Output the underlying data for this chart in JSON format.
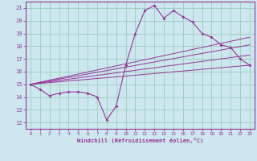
{
  "xlabel": "Windchill (Refroidissement éolien,°C)",
  "bg_color": "#cce8ee",
  "grid_color": "#99ccbb",
  "line_color": "#993399",
  "xlim": [
    -0.5,
    23.5
  ],
  "ylim": [
    11.5,
    21.5
  ],
  "yticks": [
    12,
    13,
    14,
    15,
    16,
    17,
    18,
    19,
    20,
    21
  ],
  "xticks": [
    0,
    1,
    2,
    3,
    4,
    5,
    6,
    7,
    8,
    9,
    10,
    11,
    12,
    13,
    14,
    15,
    16,
    17,
    18,
    19,
    20,
    21,
    22,
    23
  ],
  "line1_x": [
    0,
    1,
    2,
    3,
    4,
    5,
    6,
    7,
    8,
    9,
    10,
    11,
    12,
    13,
    14,
    15,
    16,
    17,
    18,
    19,
    20,
    21,
    22,
    23
  ],
  "line1_y": [
    15.0,
    14.6,
    14.1,
    14.3,
    14.4,
    14.4,
    14.3,
    14.0,
    12.2,
    13.3,
    16.5,
    19.0,
    20.8,
    21.2,
    20.2,
    20.8,
    20.3,
    19.9,
    19.0,
    18.7,
    18.1,
    17.9,
    17.0,
    16.5
  ],
  "line2_x": [
    0,
    23
  ],
  "line2_y": [
    15.0,
    16.5
  ],
  "line3_x": [
    0,
    23
  ],
  "line3_y": [
    15.0,
    17.3
  ],
  "line4_x": [
    0,
    23
  ],
  "line4_y": [
    15.0,
    18.1
  ],
  "line5_x": [
    0,
    23
  ],
  "line5_y": [
    15.0,
    18.7
  ]
}
